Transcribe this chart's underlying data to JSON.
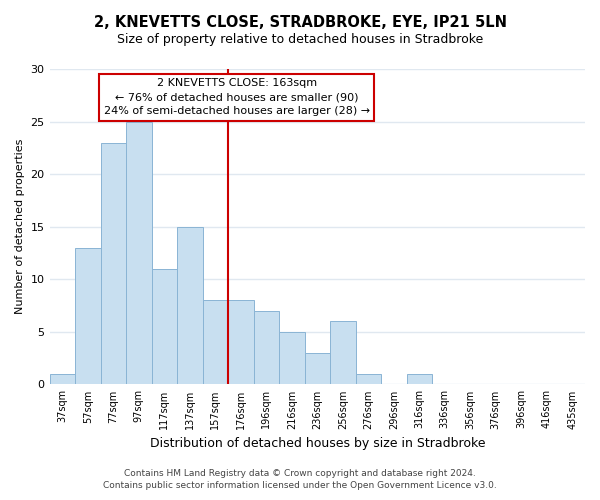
{
  "title": "2, KNEVETTS CLOSE, STRADBROKE, EYE, IP21 5LN",
  "subtitle": "Size of property relative to detached houses in Stradbroke",
  "xlabel": "Distribution of detached houses by size in Stradbroke",
  "ylabel": "Number of detached properties",
  "bar_labels": [
    "37sqm",
    "57sqm",
    "77sqm",
    "97sqm",
    "117sqm",
    "137sqm",
    "157sqm",
    "176sqm",
    "196sqm",
    "216sqm",
    "236sqm",
    "256sqm",
    "276sqm",
    "296sqm",
    "316sqm",
    "336sqm",
    "356sqm",
    "376sqm",
    "396sqm",
    "416sqm",
    "435sqm"
  ],
  "bar_heights": [
    1,
    13,
    23,
    25,
    11,
    15,
    8,
    8,
    7,
    5,
    3,
    6,
    1,
    0,
    1,
    0,
    0,
    0,
    0,
    0,
    0
  ],
  "bar_color": "#c8dff0",
  "bar_edge_color": "#8ab4d4",
  "vline_color": "#cc0000",
  "annotation_title": "2 KNEVETTS CLOSE: 163sqm",
  "annotation_line1": "← 76% of detached houses are smaller (90)",
  "annotation_line2": "24% of semi-detached houses are larger (28) →",
  "annotation_box_edge": "#cc0000",
  "ylim": [
    0,
    30
  ],
  "yticks": [
    0,
    5,
    10,
    15,
    20,
    25,
    30
  ],
  "footer1": "Contains HM Land Registry data © Crown copyright and database right 2024.",
  "footer2": "Contains public sector information licensed under the Open Government Licence v3.0.",
  "fig_background": "#ffffff",
  "ax_background": "#ffffff",
  "grid_color": "#e0e8f0"
}
